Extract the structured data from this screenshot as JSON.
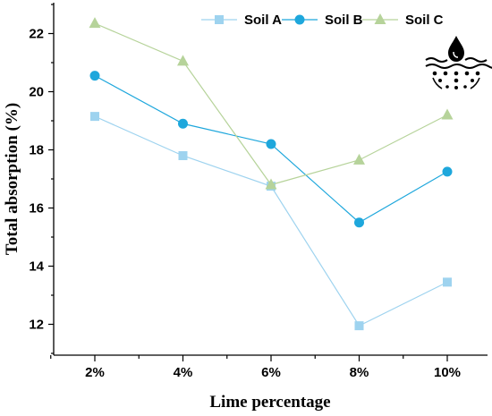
{
  "chart_data": {
    "type": "line",
    "xlabel": "Lime percentage",
    "ylabel": "Total absorption (%)",
    "categories": [
      "2%",
      "4%",
      "6%",
      "8%",
      "10%"
    ],
    "ylim": [
      11,
      23
    ],
    "yticks": [
      12,
      14,
      16,
      18,
      20,
      22
    ],
    "grid": false,
    "legend_position": "top-right",
    "series": [
      {
        "name": "Soil A",
        "marker": "square",
        "color": "#9ed3ef",
        "values": [
          19.15,
          17.8,
          16.75,
          11.95,
          13.45
        ]
      },
      {
        "name": "Soil B",
        "marker": "circle",
        "color": "#1ea7dc",
        "values": [
          20.55,
          18.9,
          18.2,
          15.5,
          17.25
        ]
      },
      {
        "name": "Soil C",
        "marker": "triangle",
        "color": "#b6d39a",
        "values": [
          22.35,
          21.05,
          16.8,
          17.65,
          19.2
        ]
      }
    ]
  },
  "icons": {
    "absorption": "water-drop-absorption-icon"
  }
}
